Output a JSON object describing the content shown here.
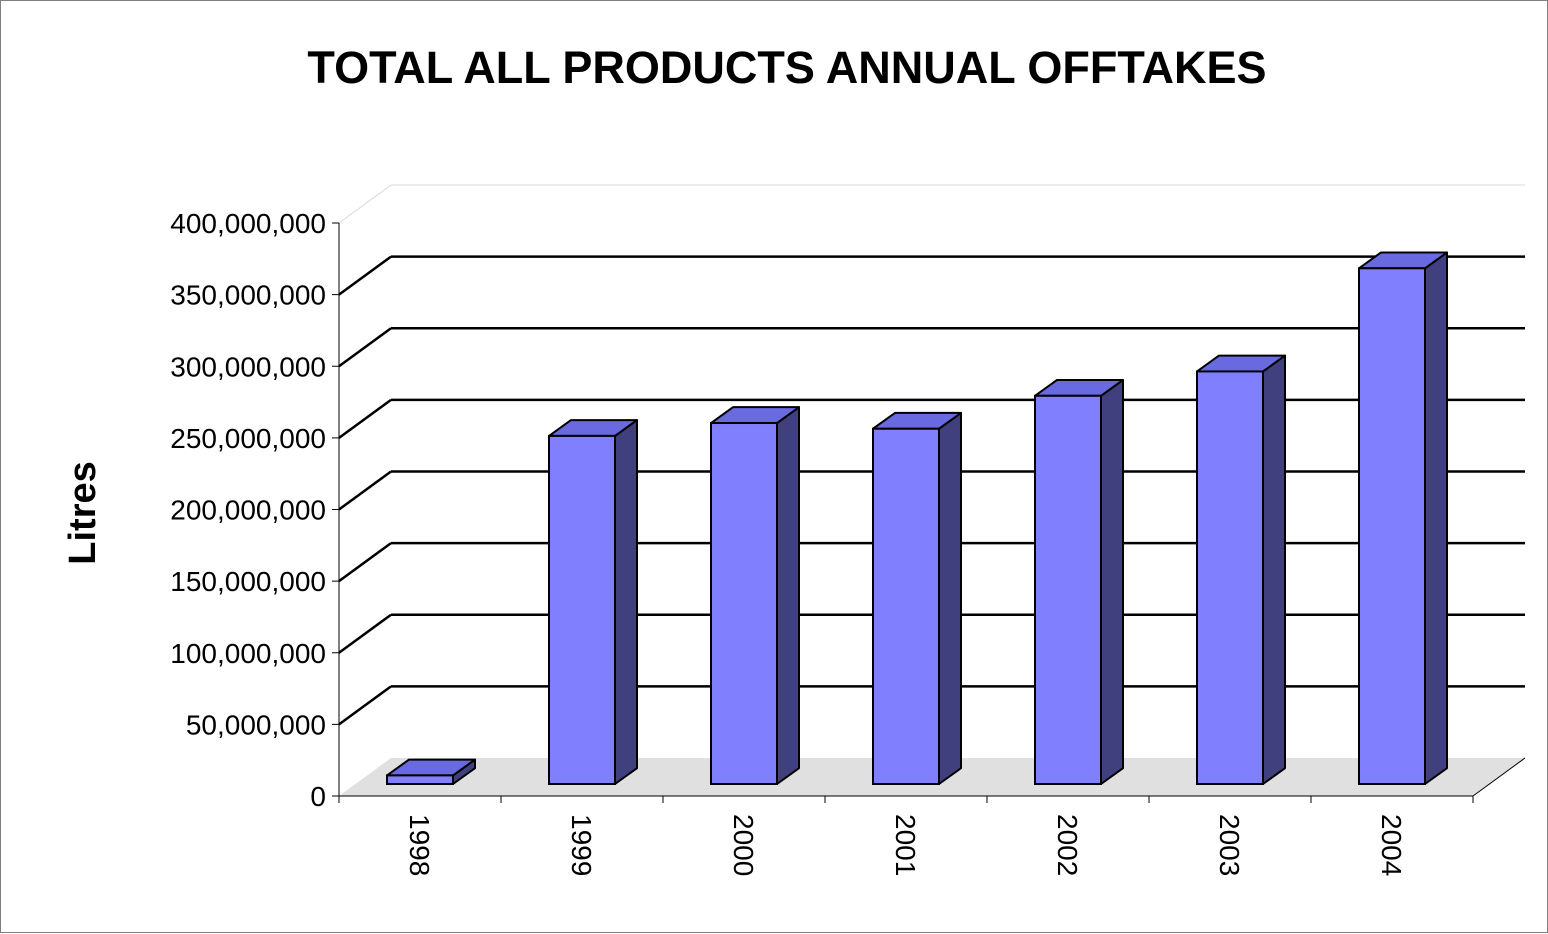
{
  "chart_data": {
    "type": "bar",
    "title": "TOTAL ALL PRODUCTS ANNUAL OFFTAKES",
    "xlabel": "",
    "ylabel": "Litres",
    "categories": [
      "1998",
      "1999",
      "2000",
      "2001",
      "2002",
      "2003",
      "2004"
    ],
    "values": [
      6000000,
      243000000,
      252000000,
      248000000,
      271000000,
      288000000,
      360000000
    ],
    "ylim": [
      0,
      400000000
    ],
    "yticks": [
      0,
      50000000,
      100000000,
      150000000,
      200000000,
      250000000,
      300000000,
      350000000,
      400000000
    ],
    "ytick_labels": [
      "0",
      "50,000,000",
      "100,000,000",
      "150,000,000",
      "200,000,000",
      "250,000,000",
      "300,000,000",
      "350,000,000",
      "400,000,000"
    ],
    "grid": true,
    "style": "3d",
    "colors": {
      "bar_front": "#8080FF",
      "bar_top": "#6A6AE0",
      "bar_side": "#40407F",
      "floor": "#E0E0E0"
    }
  }
}
